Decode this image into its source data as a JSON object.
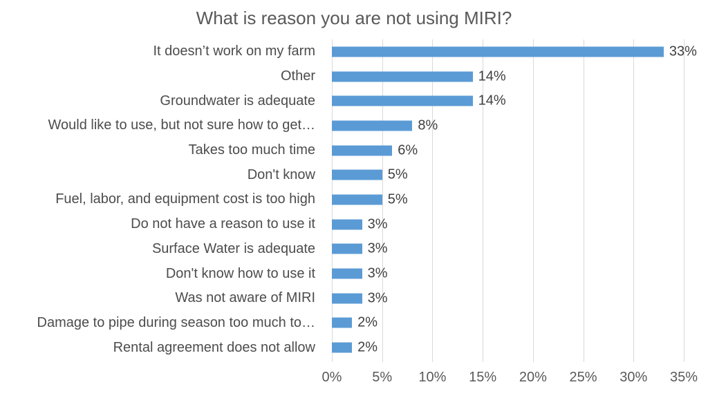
{
  "title": "What is reason you are not using MIRI?",
  "chart_data": {
    "type": "bar",
    "orientation": "horizontal",
    "title": "What is reason you are not using MIRI?",
    "categories": [
      "It doesn’t work on my farm",
      "Other",
      "Groundwater is adequate",
      "Would like to use, but not sure how to get…",
      "Takes too much time",
      "Don't know",
      "Fuel, labor, and equipment cost is too high",
      "Do not have a reason to use it",
      "Surface Water is adequate",
      "Don't know how to use it",
      "Was not aware of MIRI",
      "Damage to pipe during season too much to…",
      "Rental agreement does not allow"
    ],
    "values": [
      33,
      14,
      14,
      8,
      6,
      5,
      5,
      3,
      3,
      3,
      3,
      2,
      2
    ],
    "value_labels": [
      "33%",
      "14%",
      "14%",
      "8%",
      "6%",
      "5%",
      "5%",
      "3%",
      "3%",
      "3%",
      "3%",
      "2%",
      "2%"
    ],
    "x_axis_ticks": [
      "0%",
      "5%",
      "10%",
      "15%",
      "20%",
      "25%",
      "30%",
      "35%"
    ],
    "xlim": [
      0,
      35
    ],
    "xlabel": "",
    "ylabel": "",
    "grid": true,
    "legend": false,
    "bar_color": "#5B9BD5",
    "gridline_color": "#D9D9D9",
    "title_color": "#595959",
    "label_color": "#4c4c4c",
    "value_label_color": "#404040",
    "axis_label_color": "#595959"
  }
}
